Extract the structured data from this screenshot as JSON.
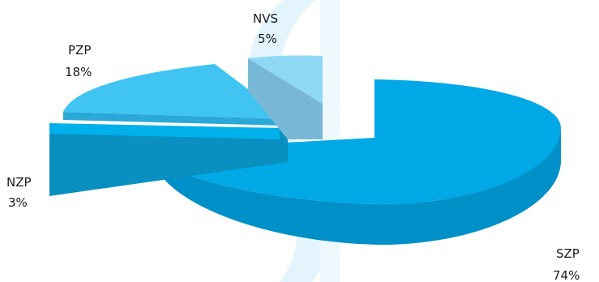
{
  "chart_data": {
    "type": "pie",
    "three_d": true,
    "exploded": true,
    "slices": [
      {
        "label": "SZP",
        "pct_label": "74%",
        "value": 74,
        "color": "#00a8e6"
      },
      {
        "label": "NZP",
        "pct_label": "3%",
        "value": 3,
        "color": "#00b0ea"
      },
      {
        "label": "PZP",
        "pct_label": "18%",
        "value": 18,
        "color": "#40c4f2"
      },
      {
        "label": "NVS",
        "pct_label": "5%",
        "value": 5,
        "color": "#8ed8f6"
      }
    ],
    "background_watermark_color": "#e3f4fc",
    "legend": "none"
  }
}
